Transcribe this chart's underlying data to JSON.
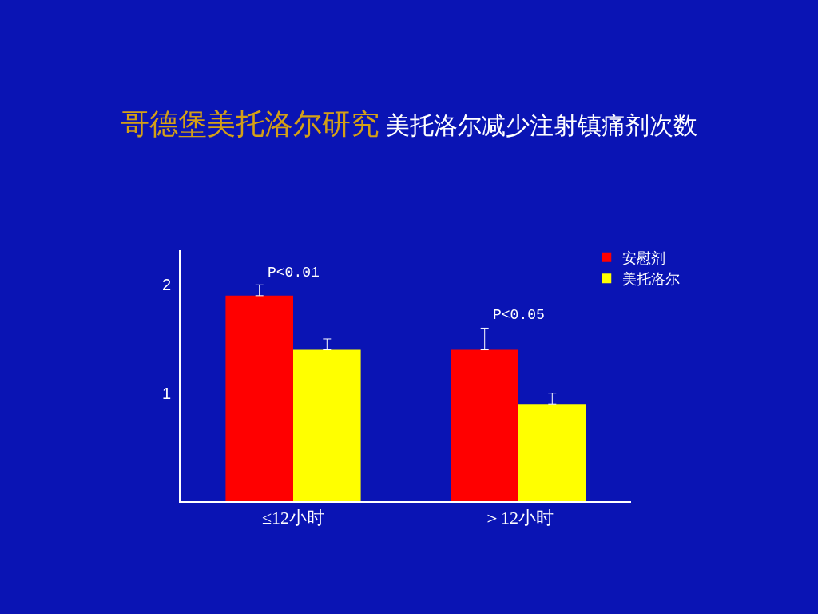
{
  "chart_data": {
    "type": "bar",
    "title": "哥德堡美托洛尔研究",
    "subtitle": "美托洛尔减少注射镇痛剂次数",
    "categories": [
      "≤12小时",
      "＞12小时"
    ],
    "series": [
      {
        "name": "安慰剂",
        "color": "#ff0000",
        "values": [
          1.9,
          1.4
        ],
        "errors": [
          [
            1.9,
            2.0
          ],
          [
            1.4,
            1.6
          ]
        ]
      },
      {
        "name": "美托洛尔",
        "color": "#ffff00",
        "values": [
          1.4,
          0.9
        ],
        "errors": [
          [
            1.4,
            1.5
          ],
          [
            0.9,
            1.0
          ]
        ]
      }
    ],
    "annotations": [
      "P<0.01",
      "P<0.05"
    ],
    "ylim": [
      0,
      2.32
    ],
    "yticks": [
      1,
      2
    ],
    "grid": false,
    "legend": "top right"
  }
}
